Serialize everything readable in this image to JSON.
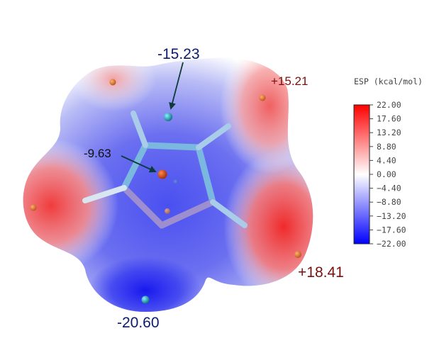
{
  "annotations": {
    "min_top": "-15.23",
    "min_center": "-9.63",
    "max_right_top": "+15.21",
    "max_right_bottom": "+18.41",
    "min_bottom": "-20.60"
  },
  "colorbar": {
    "title": "ESP (kcal/mol)",
    "ticks": [
      "22.00",
      "17.60",
      "13.20",
      "8.80",
      "4.40",
      "0.00",
      "−4.40",
      "−8.80",
      "−13.20",
      "−17.60",
      "−22.00"
    ],
    "colors": {
      "max": "#ff0000",
      "mid": "#ffffff",
      "min": "#0000ff"
    }
  },
  "colors": {
    "negative_label": "#0d1b6b",
    "positive_label": "#7a0f0f",
    "bond": "#7ab8e0",
    "arrow": "#0f3a3a"
  }
}
